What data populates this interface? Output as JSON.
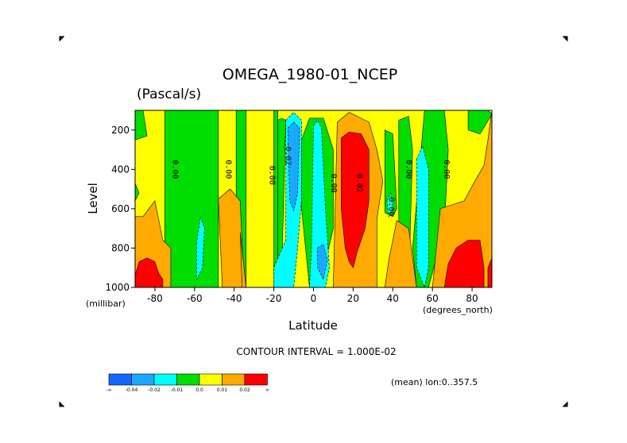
{
  "chart_data": {
    "type": "heatmap",
    "title": "OMEGA_1980-01_NCEP",
    "units": "(Pascal/s)",
    "xlabel": "Latitude",
    "ylabel": "Level",
    "x_unit": "(degrees_north)",
    "y_unit": "(millibar)",
    "xlim": [
      -90,
      90
    ],
    "ylim": [
      1000,
      100
    ],
    "x_ticks": [
      "-80",
      "-60",
      "-40",
      "-20",
      "0",
      "20",
      "40",
      "60",
      "80"
    ],
    "x_tick_values": [
      -80,
      -60,
      -40,
      -20,
      0,
      20,
      40,
      60,
      80
    ],
    "y_ticks": [
      "200",
      "400",
      "600",
      "800",
      "1000"
    ],
    "y_tick_values": [
      200,
      400,
      600,
      800,
      1000
    ],
    "contour_interval_text": "CONTOUR INTERVAL = 1.000E-02",
    "note": "(mean) lon:0..357.5",
    "contour_labels": [
      {
        "text": "0.00",
        "lat": -71,
        "level": 400
      },
      {
        "text": "0.00",
        "lat": -44,
        "level": 400
      },
      {
        "text": "0.00",
        "lat": -22,
        "level": 430
      },
      {
        "text": "-0.02",
        "lat": -14,
        "level": 320
      },
      {
        "text": "0.00",
        "lat": 9,
        "level": 470
      },
      {
        "text": "0.02",
        "lat": 22,
        "level": 470
      },
      {
        "text": "0.00",
        "lat": 38,
        "level": 590
      },
      {
        "text": "0.00",
        "lat": 47,
        "level": 400
      },
      {
        "text": "0.00",
        "lat": 66,
        "level": 400
      }
    ],
    "colorbar": {
      "labels": [
        "-∞",
        "-0.04",
        "-0.02",
        "-0.01",
        "0.0",
        "0.01",
        "0.02",
        "∞"
      ],
      "colors": [
        "#1464ff",
        "#19aaff",
        "#00ffff",
        "#00dd00",
        "#ffff00",
        "#ffaa00",
        "#ff0000"
      ]
    },
    "regions": [
      {
        "color": "#00dd00",
        "poly": [
          [
            -75,
            100
          ],
          [
            -48,
            100
          ],
          [
            -48,
            1000
          ],
          [
            -75,
            1000
          ]
        ]
      },
      {
        "color": "#00dd00",
        "poly": [
          [
            -39,
            100
          ],
          [
            -34,
            100
          ],
          [
            -34,
            1000
          ],
          [
            -39,
            1000
          ]
        ]
      },
      {
        "color": "#00dd00",
        "poly": [
          [
            -20,
            100
          ],
          [
            -18,
            100
          ],
          [
            -18,
            1000
          ],
          [
            -20,
            1000
          ]
        ]
      },
      {
        "color": "#00dd00",
        "poly": [
          [
            -90,
            100
          ],
          [
            -86,
            100
          ],
          [
            -84,
            230
          ],
          [
            -90,
            250
          ]
        ]
      },
      {
        "color": "#00dd00",
        "poly": [
          [
            -90,
            470
          ],
          [
            -88,
            520
          ],
          [
            -90,
            560
          ]
        ]
      },
      {
        "color": "#00dd00",
        "poly": [
          [
            -18,
            150
          ],
          [
            -16,
            140
          ],
          [
            -14,
            150
          ],
          [
            -16,
            900
          ],
          [
            -18,
            1000
          ]
        ]
      },
      {
        "color": "#00dd00",
        "poly": [
          [
            -2,
            140
          ],
          [
            -6,
            250
          ],
          [
            -6,
            600
          ],
          [
            -2,
            1000
          ],
          [
            3,
            1000
          ],
          [
            10,
            700
          ],
          [
            10,
            300
          ],
          [
            5,
            140
          ]
        ]
      },
      {
        "color": "#00dd00",
        "poly": [
          [
            36,
            200
          ],
          [
            40,
            220
          ],
          [
            42,
            600
          ],
          [
            40,
            640
          ],
          [
            36,
            620
          ]
        ]
      },
      {
        "color": "#00dd00",
        "poly": [
          [
            43,
            150
          ],
          [
            48,
            130
          ],
          [
            50,
            300
          ],
          [
            48,
            1000
          ],
          [
            45,
            1000
          ],
          [
            43,
            700
          ]
        ]
      },
      {
        "color": "#00dd00",
        "poly": [
          [
            56,
            100
          ],
          [
            66,
            100
          ],
          [
            68,
            300
          ],
          [
            66,
            700
          ],
          [
            58,
            1000
          ],
          [
            52,
            1000
          ],
          [
            50,
            800
          ]
        ]
      },
      {
        "color": "#00dd00",
        "poly": [
          [
            78,
            100
          ],
          [
            88,
            100
          ],
          [
            90,
            120
          ],
          [
            84,
            220
          ],
          [
            78,
            200
          ]
        ]
      },
      {
        "color": "#ffaa00",
        "poly": [
          [
            -90,
            640
          ],
          [
            -86,
            640
          ],
          [
            -80,
            560
          ],
          [
            -76,
            760
          ],
          [
            -72,
            800
          ],
          [
            -72,
            1000
          ],
          [
            -90,
            1000
          ]
        ]
      },
      {
        "color": "#ffaa00",
        "poly": [
          [
            -46,
            1000
          ],
          [
            -48,
            550
          ],
          [
            -42,
            500
          ],
          [
            -37,
            560
          ],
          [
            -35,
            1000
          ]
        ]
      },
      {
        "color": "#ffaa00",
        "poly": [
          [
            -37,
            720
          ],
          [
            -36,
            1000
          ],
          [
            -34,
            1000
          ]
        ]
      },
      {
        "color": "#ffaa00",
        "poly": [
          [
            10,
            1000
          ],
          [
            12,
            160
          ],
          [
            18,
            110
          ],
          [
            28,
            160
          ],
          [
            32,
            300
          ],
          [
            35,
            460
          ],
          [
            32,
            650
          ],
          [
            32,
            1000
          ]
        ]
      },
      {
        "color": "#ffaa00",
        "poly": [
          [
            36,
            1000
          ],
          [
            38,
            860
          ],
          [
            42,
            660
          ],
          [
            48,
            700
          ],
          [
            52,
            1000
          ]
        ]
      },
      {
        "color": "#ffaa00",
        "poly": [
          [
            60,
            1000
          ],
          [
            64,
            600
          ],
          [
            70,
            580
          ],
          [
            76,
            560
          ],
          [
            82,
            450
          ],
          [
            86,
            380
          ],
          [
            88,
            250
          ],
          [
            90,
            100
          ],
          [
            90,
            1000
          ]
        ]
      },
      {
        "color": "#ff0000",
        "poly": [
          [
            -90,
            940
          ],
          [
            -88,
            870
          ],
          [
            -84,
            850
          ],
          [
            -80,
            870
          ],
          [
            -78,
            930
          ],
          [
            -76,
            960
          ],
          [
            -76,
            1000
          ],
          [
            -90,
            1000
          ]
        ]
      },
      {
        "color": "#ff0000",
        "poly": [
          [
            14,
            240
          ],
          [
            18,
            210
          ],
          [
            24,
            220
          ],
          [
            28,
            300
          ],
          [
            28,
            560
          ],
          [
            26,
            700
          ],
          [
            24,
            760
          ],
          [
            22,
            820
          ],
          [
            20,
            900
          ],
          [
            18,
            870
          ],
          [
            16,
            800
          ],
          [
            14,
            600
          ]
        ]
      },
      {
        "color": "#ff0000",
        "poly": [
          [
            66,
            1000
          ],
          [
            68,
            880
          ],
          [
            72,
            800
          ],
          [
            78,
            760
          ],
          [
            84,
            760
          ],
          [
            86,
            900
          ],
          [
            86,
            1000
          ]
        ]
      },
      {
        "color": "#ff0000",
        "poly": [
          [
            88,
            900
          ],
          [
            90,
            850
          ],
          [
            90,
            1000
          ],
          [
            88,
            1000
          ]
        ]
      },
      {
        "color": "#00ffff",
        "poly": [
          [
            -14,
            150
          ],
          [
            -10,
            110
          ],
          [
            -6,
            150
          ],
          [
            -6,
            550
          ],
          [
            -8,
            800
          ],
          [
            -10,
            1000
          ],
          [
            -20,
            1000
          ],
          [
            -20,
            900
          ],
          [
            -14,
            760
          ]
        ]
      },
      {
        "color": "#00ffff",
        "poly": [
          [
            0,
            180
          ],
          [
            2,
            150
          ],
          [
            4,
            190
          ],
          [
            6,
            600
          ],
          [
            8,
            900
          ],
          [
            6,
            1000
          ],
          [
            -2,
            1000
          ],
          [
            -1,
            800
          ]
        ]
      },
      {
        "color": "#00ffff",
        "poly": [
          [
            -59,
            780
          ],
          [
            -57,
            640
          ],
          [
            -55,
            700
          ],
          [
            -56,
            900
          ],
          [
            -59,
            960
          ]
        ]
      },
      {
        "color": "#00ffff",
        "poly": [
          [
            52,
            350
          ],
          [
            55,
            280
          ],
          [
            58,
            400
          ],
          [
            58,
            900
          ],
          [
            56,
            1000
          ],
          [
            52,
            900
          ]
        ]
      },
      {
        "color": "#00ffff",
        "poly": [
          [
            37,
            560
          ],
          [
            39,
            520
          ],
          [
            40,
            600
          ],
          [
            38,
            640
          ]
        ]
      },
      {
        "color": "#19aaff",
        "poly": [
          [
            -13,
            190
          ],
          [
            -10,
            160
          ],
          [
            -7,
            190
          ],
          [
            -8,
            520
          ],
          [
            -10,
            610
          ],
          [
            -12,
            560
          ]
        ]
      },
      {
        "color": "#19aaff",
        "poly": [
          [
            2,
            800
          ],
          [
            5,
            780
          ],
          [
            7,
            860
          ],
          [
            5,
            960
          ],
          [
            2,
            900
          ]
        ]
      }
    ]
  }
}
